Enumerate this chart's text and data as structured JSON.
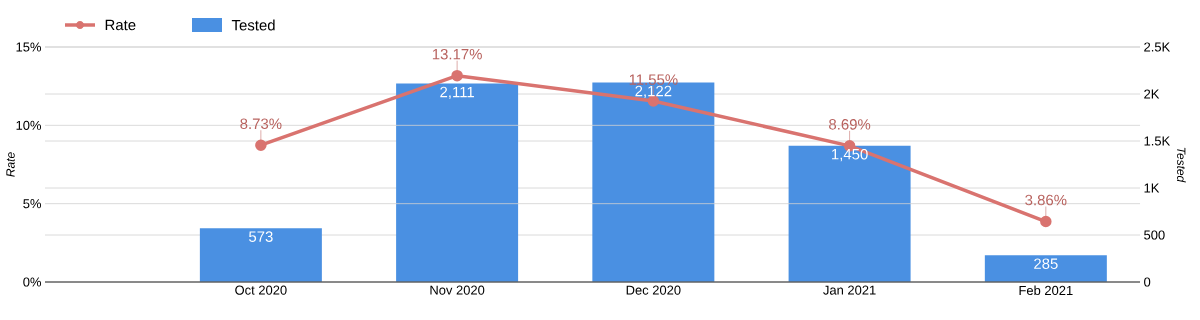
{
  "chart_data": {
    "type": "bar",
    "categories": [
      "Oct 2020",
      "Nov 2020",
      "Dec 2020",
      "Jan 2021",
      "Feb 2021"
    ],
    "series": [
      {
        "name": "Tested",
        "axis": "y2",
        "color": "#4a90e2",
        "values": [
          573,
          2111,
          2122,
          1450,
          285
        ],
        "value_labels": [
          "573",
          "2,111",
          "2,122",
          "1,450",
          "285"
        ]
      },
      {
        "name": "Rate",
        "type": "line",
        "axis": "y",
        "color": "#d9736f",
        "marker": "circle",
        "values": [
          8.73,
          13.17,
          11.55,
          8.69,
          3.86
        ],
        "value_labels": [
          "8.73%",
          "13.17%",
          "11.55%",
          "8.69%",
          "3.86%"
        ]
      }
    ],
    "ylabel": "Rate",
    "y2label": "Tested",
    "ylim": [
      0,
      15
    ],
    "yticks": [
      {
        "value": 0,
        "label": "0%"
      },
      {
        "value": 5,
        "label": "5%"
      },
      {
        "value": 10,
        "label": "10%"
      },
      {
        "value": 15,
        "label": "15%"
      }
    ],
    "y2lim": [
      0,
      2500
    ],
    "y2ticks": [
      0,
      500,
      {
        "value": 1000,
        "label": "1K"
      },
      {
        "value": 1500,
        "label": "1.5K"
      },
      {
        "value": 2000,
        "label": "2K"
      },
      {
        "value": 2500,
        "label": "2.5K"
      }
    ],
    "grid": "y",
    "legend": "top left"
  }
}
